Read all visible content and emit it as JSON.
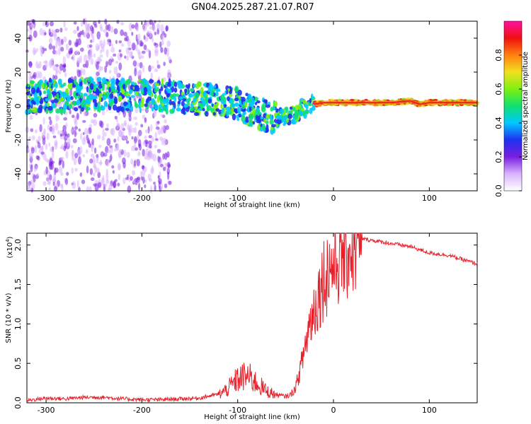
{
  "title": "GN04.2025.287.21.07.R07",
  "colors": {
    "snr_line": "#e8202a",
    "axis": "#000000",
    "background": "#ffffff",
    "ridge": "#e8202a"
  },
  "chart_data": [
    {
      "type": "heatmap",
      "name": "spectrogram",
      "xlabel": "Height of straight line (km)",
      "ylabel": "Frequency (Hz)",
      "xlim": [
        -320,
        150
      ],
      "ylim": [
        -50,
        50
      ],
      "xticks": [
        -300,
        -200,
        -100,
        0,
        100
      ],
      "xtick_labels": [
        "-300",
        "-200",
        "-100",
        "0",
        "100"
      ],
      "yticks": [
        -40,
        -20,
        0,
        20,
        40
      ],
      "ytick_labels": [
        "-40",
        "-20",
        "0",
        "20",
        "40"
      ],
      "colorbar": {
        "label": "Normalized spectral amplitude",
        "range": [
          0,
          1
        ],
        "ticks": [
          0.0,
          0.2,
          0.4,
          0.6,
          0.8
        ],
        "tick_labels": [
          "0.0",
          "0.2",
          "0.4",
          "0.6",
          "0.8"
        ],
        "colors": [
          "#ffffff",
          "#d9b3ff",
          "#7a1fe0",
          "#2030f0",
          "#00c8ff",
          "#10e070",
          "#7ef010",
          "#f2e020",
          "#ff8010",
          "#f01010",
          "#ff10a0"
        ]
      },
      "ridge_frequency": {
        "x": [
          -320,
          -300,
          -280,
          -260,
          -240,
          -220,
          -200,
          -180,
          -160,
          -140,
          -120,
          -100,
          -90,
          -80,
          -70,
          -60,
          -50,
          -40,
          -30,
          -20,
          -10,
          0,
          20,
          40,
          60,
          80,
          90,
          100,
          120,
          150
        ],
        "y": [
          5,
          6,
          6,
          7,
          7,
          6,
          6,
          6,
          5,
          4,
          3,
          1,
          -2,
          -4,
          -6,
          -7,
          -6,
          -4,
          -1,
          1,
          2,
          2,
          2,
          2,
          2,
          3,
          1,
          2,
          2,
          2
        ]
      }
    },
    {
      "type": "line",
      "name": "snr",
      "xlabel": "Height of straight line (km)",
      "ylabel": "SNR (10 * v/v)",
      "multiplier": "(x10",
      "multiplier_exp": "4",
      "multiplier_close": ")",
      "xlim": [
        -320,
        150
      ],
      "ylim": [
        0,
        21500
      ],
      "xticks": [
        -300,
        -200,
        -100,
        0,
        100
      ],
      "xtick_labels": [
        "-300",
        "-200",
        "-100",
        "0",
        "100"
      ],
      "yticks": [
        0,
        5000,
        10000,
        15000,
        20000
      ],
      "ytick_labels": [
        "0.0",
        "0.5",
        "1.0",
        "1.5",
        "2.0"
      ],
      "x": [
        -320,
        -300,
        -280,
        -260,
        -240,
        -220,
        -200,
        -180,
        -160,
        -140,
        -120,
        -110,
        -100,
        -90,
        -80,
        -70,
        -60,
        -50,
        -45,
        -40,
        -35,
        -30,
        -25,
        -20,
        -15,
        -10,
        -5,
        0,
        5,
        10,
        20,
        30,
        40,
        60,
        80,
        100,
        120,
        150
      ],
      "y": [
        200,
        500,
        400,
        600,
        600,
        400,
        300,
        300,
        400,
        500,
        1000,
        1800,
        3000,
        3400,
        2500,
        1500,
        1000,
        800,
        1000,
        1800,
        4000,
        7000,
        10000,
        12000,
        14000,
        16000,
        17000,
        17500,
        18500,
        19000,
        20000,
        20800,
        20600,
        20200,
        19800,
        19000,
        18700,
        17600
      ]
    }
  ]
}
